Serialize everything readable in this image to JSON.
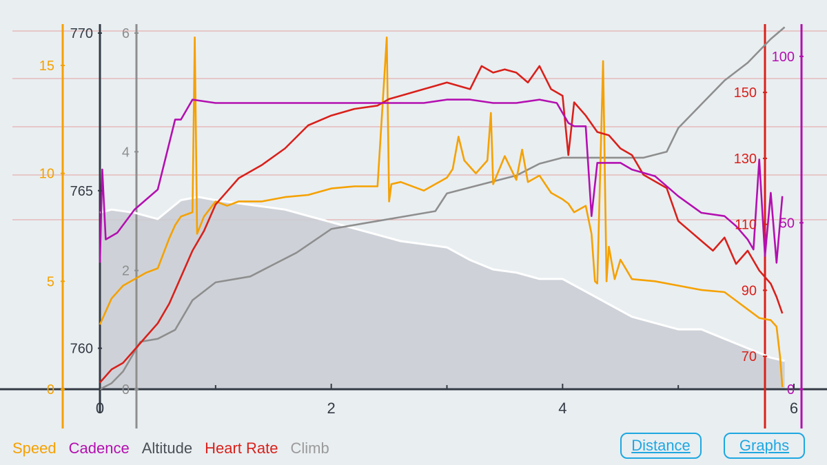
{
  "chart_data": {
    "type": "line",
    "x": {
      "label": "",
      "range": [
        0,
        6
      ],
      "ticks": [
        "0",
        "2",
        "4",
        "6"
      ]
    },
    "axes": {
      "speed": {
        "range": [
          0,
          16.5
        ],
        "ticks": [
          "0",
          "5",
          "10",
          "15"
        ],
        "color": "#f5a100"
      },
      "altitude": {
        "range": [
          758.7,
          770
        ],
        "ticks": [
          "760",
          "765",
          "770"
        ],
        "color": "#333a44"
      },
      "climb": {
        "range": [
          0,
          6
        ],
        "ticks": [
          "0",
          "2",
          "4",
          "6"
        ],
        "color": "#8e8e8e"
      },
      "heart_rate": {
        "range": [
          60,
          168
        ],
        "ticks": [
          "70",
          "90",
          "110",
          "130",
          "150"
        ],
        "color": "#d9201a"
      },
      "cadence": {
        "range": [
          0,
          107
        ],
        "ticks": [
          "0",
          "50",
          "100"
        ],
        "color": "#b30fb0"
      }
    },
    "series": [
      {
        "name": "Altitude",
        "axis": "altitude",
        "color": "#ffffff",
        "x": [
          0,
          0.1,
          0.3,
          0.5,
          0.7,
          0.85,
          1.0,
          1.2,
          1.4,
          1.6,
          1.8,
          2.0,
          2.2,
          2.4,
          2.6,
          2.8,
          3.0,
          3.2,
          3.4,
          3.6,
          3.8,
          4.0,
          4.2,
          4.4,
          4.6,
          4.8,
          5.0,
          5.2,
          5.4,
          5.6,
          5.8,
          5.92
        ],
        "values": [
          764.3,
          764.4,
          764.3,
          764.1,
          764.7,
          764.8,
          764.7,
          764.6,
          764.5,
          764.4,
          764.2,
          764.0,
          763.8,
          763.6,
          763.4,
          763.3,
          763.2,
          762.8,
          762.5,
          762.4,
          762.2,
          762.2,
          761.8,
          761.4,
          761.0,
          760.8,
          760.6,
          760.6,
          760.3,
          760.0,
          759.7,
          759.6
        ]
      },
      {
        "name": "Climb",
        "axis": "climb",
        "color": "#8e8e8e",
        "x": [
          0,
          0.1,
          0.2,
          0.35,
          0.5,
          0.65,
          0.8,
          1.0,
          1.3,
          1.5,
          1.7,
          2.0,
          2.3,
          2.6,
          2.9,
          3.0,
          3.2,
          3.4,
          3.6,
          3.8,
          4.0,
          4.4,
          4.7,
          4.9,
          5.0,
          5.2,
          5.4,
          5.6,
          5.8,
          5.92
        ],
        "values": [
          0,
          0.1,
          0.3,
          0.8,
          0.85,
          1.0,
          1.5,
          1.8,
          1.9,
          2.1,
          2.3,
          2.7,
          2.8,
          2.9,
          3.0,
          3.3,
          3.4,
          3.5,
          3.6,
          3.8,
          3.9,
          3.9,
          3.9,
          4.0,
          4.4,
          4.8,
          5.2,
          5.5,
          5.9,
          6.1
        ]
      },
      {
        "name": "Speed",
        "axis": "speed",
        "color": "#f5a100",
        "x": [
          0,
          0.05,
          0.1,
          0.2,
          0.3,
          0.4,
          0.5,
          0.6,
          0.65,
          0.7,
          0.8,
          0.82,
          0.84,
          0.9,
          1.0,
          1.1,
          1.2,
          1.4,
          1.6,
          1.8,
          2.0,
          2.2,
          2.4,
          2.48,
          2.5,
          2.52,
          2.6,
          2.8,
          2.9,
          3.0,
          3.05,
          3.1,
          3.15,
          3.25,
          3.35,
          3.38,
          3.4,
          3.5,
          3.6,
          3.65,
          3.7,
          3.8,
          3.9,
          4.0,
          4.05,
          4.1,
          4.2,
          4.25,
          4.28,
          4.3,
          4.35,
          4.38,
          4.4,
          4.45,
          4.5,
          4.6,
          4.8,
          5.0,
          5.2,
          5.4,
          5.5,
          5.6,
          5.7,
          5.8,
          5.85,
          5.88,
          5.9
        ],
        "values": [
          3,
          3.6,
          4.2,
          4.8,
          5.1,
          5.4,
          5.6,
          7.0,
          7.6,
          8.0,
          8.2,
          16.3,
          7.2,
          8.0,
          8.7,
          8.5,
          8.7,
          8.7,
          8.9,
          9.0,
          9.3,
          9.4,
          9.4,
          16.3,
          8.7,
          9.5,
          9.6,
          9.2,
          9.5,
          9.8,
          10.2,
          11.7,
          10.6,
          10.0,
          10.6,
          12.8,
          9.5,
          10.8,
          9.7,
          11.1,
          9.6,
          9.9,
          9.1,
          8.8,
          8.6,
          8.2,
          8.5,
          7.2,
          5.0,
          4.9,
          15.2,
          5.0,
          6.6,
          5.1,
          6.0,
          5.1,
          5.0,
          4.8,
          4.6,
          4.5,
          4.1,
          3.7,
          3.3,
          3.2,
          2.9,
          1.5,
          0.1
        ]
      },
      {
        "name": "Heart Rate",
        "axis": "heart_rate",
        "color": "#d9201a",
        "x": [
          0,
          0.05,
          0.1,
          0.2,
          0.3,
          0.4,
          0.5,
          0.6,
          0.7,
          0.8,
          0.9,
          1.0,
          1.1,
          1.2,
          1.4,
          1.6,
          1.8,
          2.0,
          2.2,
          2.4,
          2.5,
          2.6,
          2.8,
          3.0,
          3.2,
          3.3,
          3.4,
          3.5,
          3.6,
          3.7,
          3.8,
          3.9,
          4.0,
          4.05,
          4.1,
          4.2,
          4.3,
          4.4,
          4.5,
          4.6,
          4.7,
          4.8,
          4.9,
          5.0,
          5.1,
          5.2,
          5.3,
          5.4,
          5.5,
          5.6,
          5.7,
          5.8,
          5.85,
          5.9
        ],
        "values": [
          62,
          64,
          66,
          68,
          72,
          76,
          80,
          86,
          94,
          102,
          108,
          116,
          120,
          124,
          128,
          133,
          140,
          143,
          145,
          146,
          148,
          149,
          151,
          153,
          151,
          158,
          156,
          157,
          156,
          153,
          158,
          151,
          149,
          131,
          147,
          143,
          138,
          137,
          133,
          131,
          125,
          123,
          121,
          111,
          108,
          105,
          102,
          106,
          98,
          102,
          96,
          92,
          88,
          83
        ]
      },
      {
        "name": "Cadence",
        "axis": "cadence",
        "color": "#b30fb0",
        "x": [
          0,
          0.02,
          0.05,
          0.15,
          0.3,
          0.5,
          0.65,
          0.7,
          0.8,
          1.0,
          1.2,
          1.5,
          1.8,
          2.0,
          2.4,
          2.8,
          3.0,
          3.2,
          3.4,
          3.6,
          3.8,
          3.95,
          4.05,
          4.1,
          4.2,
          4.25,
          4.3,
          4.4,
          4.5,
          4.6,
          4.8,
          5.0,
          5.2,
          5.4,
          5.5,
          5.6,
          5.65,
          5.7,
          5.75,
          5.8,
          5.85,
          5.9
        ],
        "values": [
          38,
          66,
          45,
          47,
          54,
          60,
          81,
          81,
          87,
          86,
          86,
          86,
          86,
          86,
          86,
          86,
          87,
          87,
          86,
          86,
          87,
          86,
          80,
          79,
          79,
          52,
          68,
          68,
          68,
          66,
          64,
          58,
          53,
          52,
          49,
          45,
          42,
          69,
          40,
          59,
          38,
          58
        ]
      }
    ],
    "legend": [
      "Speed",
      "Cadence",
      "Altitude",
      "Heart Rate",
      "Climb"
    ],
    "grid": true,
    "legend_position": "bottom-left"
  },
  "legend": {
    "speed": "Speed",
    "cadence": "Cadence",
    "altitude": "Altitude",
    "heart_rate": "Heart Rate",
    "climb": "Climb"
  },
  "buttons": {
    "distance": "Distance",
    "graphs": "Graphs"
  },
  "colors": {
    "speed": "#f5a100",
    "cadence": "#b30fb0",
    "altitude": "#333a44",
    "heart_rate": "#d9201a",
    "climb": "#8e8e8e",
    "button": "#1ea7e1"
  }
}
